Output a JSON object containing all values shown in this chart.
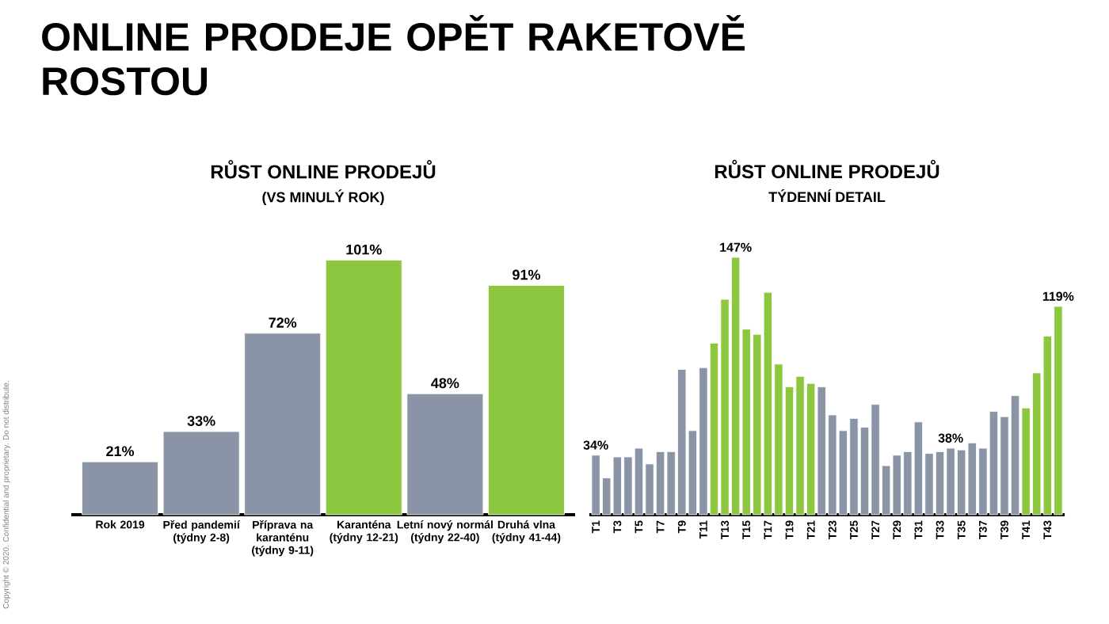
{
  "chart_data": [
    {
      "type": "bar",
      "title": "RŮST ONLINE PRODEJŮ",
      "subtitle": "(VS MINULÝ ROK)",
      "categories": [
        "Rok 2019",
        "Před pandemií (týdny 2-8)",
        "Příprava na karanténu (týdny 9-11)",
        "Karanténa (týdny 12-21)",
        "Letní nový normál (týdny 22-40)",
        "Druhá vlna (týdny 41-44)"
      ],
      "values": [
        21,
        33,
        72,
        101,
        48,
        91
      ],
      "colors": [
        "#8a94a6",
        "#8a94a6",
        "#8a94a6",
        "#8dc63f",
        "#8a94a6",
        "#8dc63f"
      ],
      "value_labels": [
        "21%",
        "33%",
        "72%",
        "101%",
        "48%",
        "91%"
      ],
      "annotations": [
        "ONLINE PRODEJE OPĚT RAKETOVĚ ROSTOU",
        "Copyright © 2020. Confidential and proprietary. Do not distribute."
      ]
    },
    {
      "type": "bar",
      "title": "RŮST ONLINE PRODEJŮ",
      "subtitle": "TÝDENNÍ DETAIL",
      "categories": [
        "T1",
        null,
        "T3",
        null,
        "T5",
        null,
        "T7",
        null,
        "T9",
        null,
        "T11",
        null,
        "T13",
        null,
        "T15",
        null,
        "T17",
        null,
        "T19",
        null,
        "T21",
        null,
        "T23",
        null,
        "T25",
        null,
        "T27",
        null,
        "T29",
        null,
        "T31",
        null,
        "T33",
        null,
        "T35",
        null,
        "T37",
        null,
        "T39",
        null,
        "T41",
        null,
        "T43",
        null
      ],
      "values": [
        34,
        21,
        33,
        33,
        38,
        29,
        36,
        36,
        83,
        48,
        84,
        98,
        123,
        147,
        106,
        103,
        127,
        86,
        73,
        79,
        75,
        73,
        57,
        48,
        55,
        50,
        63,
        28,
        34,
        36,
        53,
        35,
        36,
        38,
        37,
        41,
        38,
        59,
        56,
        68,
        61,
        81,
        102,
        119
      ],
      "colors": [
        "#8a94a6",
        "#8a94a6",
        "#8a94a6",
        "#8a94a6",
        "#8a94a6",
        "#8a94a6",
        "#8a94a6",
        "#8a94a6",
        "#8a94a6",
        "#8a94a6",
        "#8a94a6",
        "#8dc63f",
        "#8dc63f",
        "#8dc63f",
        "#8dc63f",
        "#8dc63f",
        "#8dc63f",
        "#8dc63f",
        "#8dc63f",
        "#8dc63f",
        "#8dc63f",
        "#8a94a6",
        "#8a94a6",
        "#8a94a6",
        "#8a94a6",
        "#8a94a6",
        "#8a94a6",
        "#8a94a6",
        "#8a94a6",
        "#8a94a6",
        "#8a94a6",
        "#8a94a6",
        "#8a94a6",
        "#8a94a6",
        "#8a94a6",
        "#8a94a6",
        "#8a94a6",
        "#8a94a6",
        "#8a94a6",
        "#8a94a6",
        "#8dc63f",
        "#8dc63f",
        "#8dc63f",
        "#8dc63f"
      ],
      "value_labels": [
        "34%",
        null,
        null,
        null,
        null,
        null,
        null,
        null,
        null,
        null,
        null,
        null,
        null,
        "147%",
        null,
        null,
        null,
        null,
        null,
        null,
        null,
        null,
        null,
        null,
        null,
        null,
        null,
        null,
        null,
        null,
        null,
        null,
        null,
        "38%",
        null,
        null,
        null,
        null,
        null,
        null,
        null,
        null,
        null,
        "119%"
      ]
    }
  ]
}
